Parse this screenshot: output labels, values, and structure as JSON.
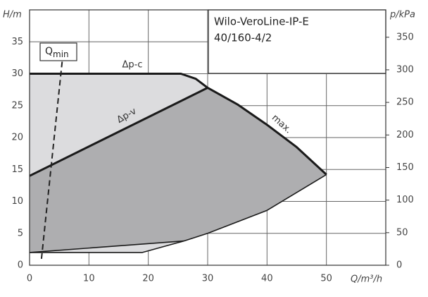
{
  "chart_data": {
    "type": "line",
    "title_lines": [
      "Wilo-VeroLine-IP-E",
      "40/160-4/2"
    ],
    "y_label": "H/m",
    "y2_label": "p/kPa",
    "x_label": "Q/m³/h",
    "xlim": [
      0,
      60
    ],
    "ylim": [
      0,
      40
    ],
    "y2lim": [
      0,
      392
    ],
    "xticks": [
      0,
      10,
      20,
      30,
      40,
      50
    ],
    "yticks": [
      0,
      5,
      10,
      15,
      20,
      25,
      30,
      35
    ],
    "y2ticks": [
      0,
      50,
      100,
      150,
      200,
      250,
      300,
      350
    ],
    "grid": true,
    "areas": [
      {
        "color": "#dcdcde",
        "x": [
          0,
          25.5,
          28,
          30,
          0
        ],
        "y": [
          30,
          30,
          29.2,
          27.8,
          14
        ]
      },
      {
        "color": "#aeaeb0",
        "x": [
          0,
          30,
          35,
          40,
          45,
          50,
          40,
          30,
          26,
          0
        ],
        "y": [
          14,
          27.8,
          25.2,
          22,
          18.5,
          14.2,
          8.6,
          5,
          3.8,
          2
        ]
      },
      {
        "color": "#dcdcde",
        "x": [
          0,
          19,
          26
        ],
        "y": [
          2,
          2,
          3.8
        ]
      }
    ],
    "curves": [
      {
        "label": "Δp-c",
        "color": "#1a1a1a",
        "x": [
          0,
          25.5,
          28,
          30
        ],
        "y": [
          30,
          30,
          29.2,
          27.8
        ]
      },
      {
        "label": "Δp-v",
        "color": "#1a1a1a",
        "x": [
          0,
          30
        ],
        "y": [
          14,
          27.8
        ]
      },
      {
        "label": "max.",
        "color": "#1a1a1a",
        "x": [
          30,
          35,
          40,
          45,
          50
        ],
        "y": [
          27.8,
          25.2,
          22,
          18.5,
          14.2
        ]
      },
      {
        "color": "#1a1a1a",
        "x": [
          0,
          26,
          30,
          40,
          50
        ],
        "y": [
          2,
          3.8,
          5,
          8.6,
          14.2
        ]
      },
      {
        "color": "#1a1a1a",
        "x": [
          0,
          19,
          26
        ],
        "y": [
          2,
          2,
          3.8
        ]
      }
    ],
    "qmin": {
      "label": "Q",
      "label_sub": "min",
      "x": [
        2,
        5.5
      ],
      "y": [
        1,
        32
      ]
    }
  }
}
